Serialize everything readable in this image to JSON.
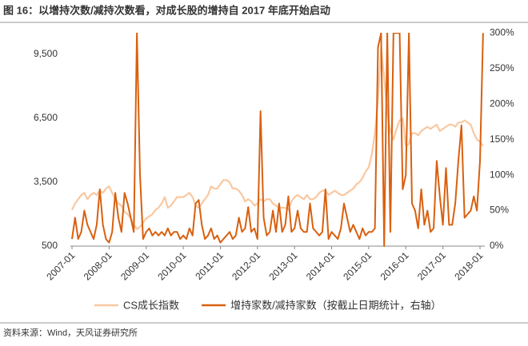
{
  "chart_data": {
    "type": "line",
    "title": "图 16：以增持次数/减持次数看，对成长股的增持自 2017 年底开始启动",
    "source": "资料来源：Wind，天风证券研究所",
    "legend": "bottom",
    "x": [
      "2007-01",
      "2007-02",
      "2007-03",
      "2007-04",
      "2007-05",
      "2007-06",
      "2007-07",
      "2007-08",
      "2007-09",
      "2007-10",
      "2007-11",
      "2007-12",
      "2008-01",
      "2008-02",
      "2008-03",
      "2008-04",
      "2008-05",
      "2008-06",
      "2008-07",
      "2008-08",
      "2008-09",
      "2008-10",
      "2008-11",
      "2008-12",
      "2009-01",
      "2009-02",
      "2009-03",
      "2009-04",
      "2009-05",
      "2009-06",
      "2009-07",
      "2009-08",
      "2009-09",
      "2009-10",
      "2009-11",
      "2009-12",
      "2010-01",
      "2010-02",
      "2010-03",
      "2010-04",
      "2010-05",
      "2010-06",
      "2010-07",
      "2010-08",
      "2010-09",
      "2010-10",
      "2010-11",
      "2010-12",
      "2011-01",
      "2011-02",
      "2011-03",
      "2011-04",
      "2011-05",
      "2011-06",
      "2011-07",
      "2011-08",
      "2011-09",
      "2011-10",
      "2011-11",
      "2011-12",
      "2012-01",
      "2012-02",
      "2012-03",
      "2012-04",
      "2012-05",
      "2012-06",
      "2012-07",
      "2012-08",
      "2012-09",
      "2012-10",
      "2012-11",
      "2012-12",
      "2013-01",
      "2013-02",
      "2013-03",
      "2013-04",
      "2013-05",
      "2013-06",
      "2013-07",
      "2013-08",
      "2013-09",
      "2013-10",
      "2013-11",
      "2013-12",
      "2014-01",
      "2014-02",
      "2014-03",
      "2014-04",
      "2014-05",
      "2014-06",
      "2014-07",
      "2014-08",
      "2014-09",
      "2014-10",
      "2014-11",
      "2014-12",
      "2015-01",
      "2015-02",
      "2015-03",
      "2015-04",
      "2015-05",
      "2015-06",
      "2015-07",
      "2015-08",
      "2015-09",
      "2015-10",
      "2015-11",
      "2015-12",
      "2016-01",
      "2016-02",
      "2016-03",
      "2016-04",
      "2016-05",
      "2016-06",
      "2016-07",
      "2016-08",
      "2016-09",
      "2016-10",
      "2016-11",
      "2016-12",
      "2017-01",
      "2017-02",
      "2017-03",
      "2017-04",
      "2017-05",
      "2017-06",
      "2017-07",
      "2017-08",
      "2017-09",
      "2017-10",
      "2017-11",
      "2017-12",
      "2018-01",
      "2018-02"
    ],
    "xticks": [
      "2007-01",
      "2008-01",
      "2009-01",
      "2010-01",
      "2011-01",
      "2012-01",
      "2013-01",
      "2014-01",
      "2015-01",
      "2016-01",
      "2017-01",
      "2018-01"
    ],
    "ylim": [
      500,
      10500
    ],
    "yticks": [
      500,
      {
        "value": 3500,
        "label": "3,500"
      },
      {
        "value": 6500,
        "label": "6,500"
      },
      {
        "value": 9500,
        "label": "9,500"
      }
    ],
    "y2lim": [
      0,
      300
    ],
    "y2ticks": [
      {
        "value": 0,
        "label": "0%"
      },
      {
        "value": 50,
        "label": "50%"
      },
      {
        "value": 100,
        "label": "100%"
      },
      {
        "value": 150,
        "label": "150%"
      },
      {
        "value": 200,
        "label": "200%"
      },
      {
        "value": 250,
        "label": "250%"
      },
      {
        "value": 300,
        "label": "300%"
      }
    ],
    "series": [
      {
        "name": "CS成长指数",
        "color": "#f9c8a0",
        "values": [
          2200,
          2500,
          2700,
          2900,
          3000,
          2700,
          2900,
          3000,
          2900,
          3100,
          3000,
          3200,
          3300,
          3000,
          2700,
          2500,
          2400,
          2100,
          2000,
          1800,
          1500,
          1300,
          1400,
          1600,
          1800,
          1900,
          2000,
          2200,
          2300,
          2500,
          2800,
          2300,
          2400,
          2600,
          2800,
          2800,
          2800,
          2900,
          3000,
          2800,
          2400,
          2300,
          2500,
          2700,
          2900,
          3300,
          3200,
          3200,
          3400,
          3600,
          3600,
          3500,
          3200,
          3200,
          3100,
          2900,
          2600,
          2700,
          2600,
          2400,
          2500,
          2700,
          2600,
          2700,
          2700,
          2500,
          2400,
          2300,
          2300,
          2300,
          2200,
          2600,
          2800,
          2900,
          2800,
          2700,
          2900,
          2700,
          2700,
          2800,
          3000,
          3100,
          3100,
          2900,
          3000,
          3100,
          3000,
          2900,
          2900,
          3000,
          3100,
          3200,
          3400,
          3500,
          3700,
          4000,
          4200,
          4800,
          5800,
          7400,
          9800,
          8400,
          6800,
          5900,
          5500,
          6000,
          6400,
          6500,
          5200,
          5300,
          5800,
          5800,
          5700,
          5900,
          6000,
          6100,
          6000,
          6100,
          6200,
          5900,
          6000,
          6100,
          6200,
          6200,
          6100,
          6300,
          6300,
          6400,
          6300,
          6200,
          5800,
          5500,
          5400,
          5200
        ]
      },
      {
        "name": "增持家数/减持家数（按截止日期统计，右轴）",
        "color": "#d9600f",
        "axis": "y2",
        "values": [
          10,
          40,
          10,
          20,
          50,
          30,
          20,
          10,
          30,
          80,
          30,
          10,
          5,
          20,
          75,
          40,
          20,
          75,
          60,
          40,
          20,
          300,
          100,
          10,
          20,
          25,
          15,
          20,
          15,
          20,
          15,
          25,
          15,
          20,
          20,
          10,
          15,
          10,
          25,
          15,
          60,
          65,
          30,
          10,
          15,
          25,
          10,
          15,
          5,
          10,
          15,
          20,
          10,
          15,
          40,
          20,
          25,
          55,
          20,
          25,
          10,
          190,
          40,
          15,
          20,
          50,
          20,
          60,
          20,
          30,
          70,
          20,
          25,
          50,
          25,
          20,
          20,
          60,
          25,
          20,
          15,
          20,
          80,
          10,
          20,
          15,
          10,
          25,
          60,
          40,
          20,
          30,
          20,
          10,
          25,
          15,
          20,
          20,
          25,
          280,
          300,
          0,
          300,
          20,
          300,
          300,
          300,
          80,
          100,
          300,
          60,
          50,
          25,
          80,
          30,
          50,
          20,
          25,
          120,
          70,
          30,
          110,
          30,
          30,
          60,
          120,
          170,
          40,
          45,
          50,
          70,
          50,
          120,
          300
        ]
      }
    ]
  }
}
